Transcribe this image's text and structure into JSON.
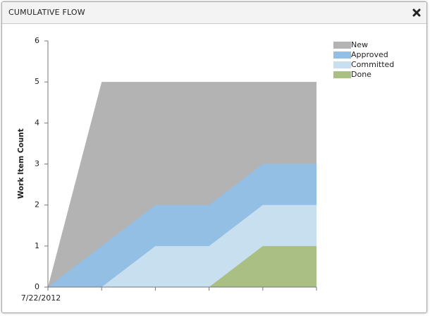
{
  "header": {
    "title": "CUMULATIVE FLOW"
  },
  "chart_data": {
    "type": "stacked-area",
    "y_label": "Work Item Count",
    "categories": [
      "7/22/2012",
      null,
      null,
      null,
      null,
      null
    ],
    "series": [
      {
        "name": "New",
        "color": "#b3b3b3",
        "values": [
          0,
          4,
          3,
          3,
          2,
          2
        ]
      },
      {
        "name": "Approved",
        "color": "#92bfe3",
        "values": [
          0,
          1,
          1,
          1,
          1,
          1
        ]
      },
      {
        "name": "Committed",
        "color": "#c8dff0",
        "values": [
          0,
          0,
          1,
          1,
          1,
          1
        ]
      },
      {
        "name": "Done",
        "color": "#aabf83",
        "values": [
          0,
          0,
          0,
          0,
          1,
          1
        ]
      }
    ],
    "ylim": [
      0,
      6
    ],
    "yticks": [
      0,
      1,
      2,
      3,
      4,
      5,
      6
    ],
    "legend": "top-right"
  }
}
